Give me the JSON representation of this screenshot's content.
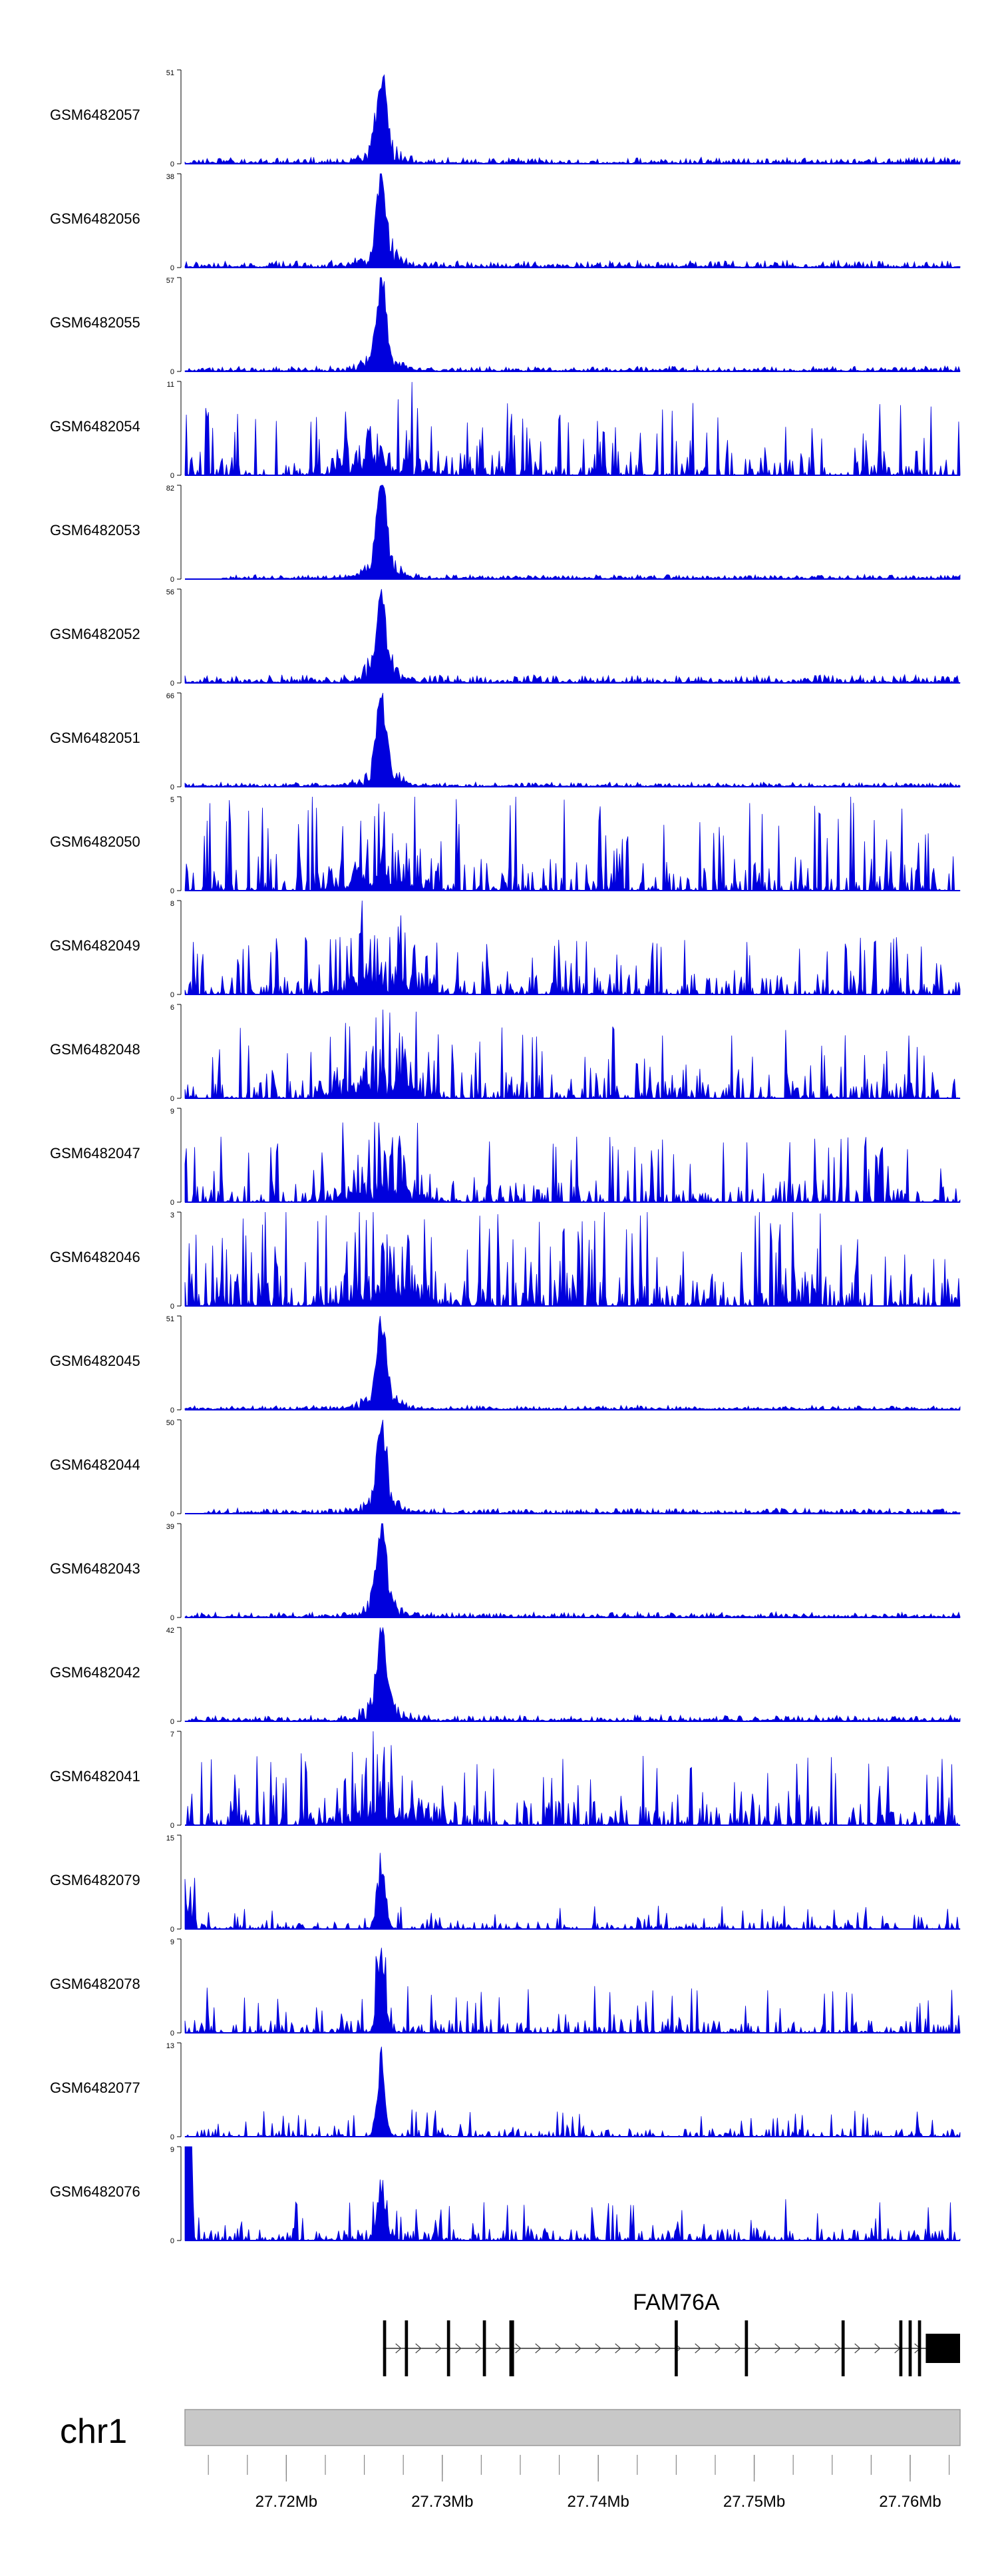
{
  "chart_data": {
    "type": "area",
    "title": "",
    "chromosome": "chr1",
    "x_unit": "Mb",
    "xlim": [
      27.7135,
      27.7632
    ],
    "genome_axis": {
      "major_ticks": [
        27.72,
        27.73,
        27.74,
        27.75,
        27.76
      ],
      "tick_labels": [
        "27.72Mb",
        "27.73Mb",
        "27.74Mb",
        "27.75Mb",
        "27.76Mb"
      ],
      "minor_tick_step": 0.0025
    },
    "peak_center": 27.7261,
    "series": [
      {
        "name": "GSM6482057",
        "ymax": 51,
        "ymin": 0,
        "profile": "peak",
        "peak": 1.0,
        "noise": 0.06
      },
      {
        "name": "GSM6482056",
        "ymax": 38,
        "ymin": 0,
        "profile": "peak",
        "peak": 0.97,
        "noise": 0.07
      },
      {
        "name": "GSM6482055",
        "ymax": 57,
        "ymin": 0,
        "profile": "peak",
        "peak": 0.97,
        "noise": 0.05
      },
      {
        "name": "GSM6482054",
        "ymax": 11,
        "ymin": 0,
        "profile": "noisy",
        "peak": 0.85,
        "noise": 0.55
      },
      {
        "name": "GSM6482053",
        "ymax": 82,
        "ymin": 0,
        "profile": "peak",
        "peak": 1.0,
        "noise": 0.04
      },
      {
        "name": "GSM6482052",
        "ymax": 56,
        "ymin": 0,
        "profile": "peak",
        "peak": 0.97,
        "noise": 0.08
      },
      {
        "name": "GSM6482051",
        "ymax": 66,
        "ymin": 0,
        "profile": "peak",
        "peak": 0.98,
        "noise": 0.04
      },
      {
        "name": "GSM6482050",
        "ymax": 5,
        "ymin": 0,
        "profile": "noisy",
        "peak": 0.5,
        "noise": 0.75
      },
      {
        "name": "GSM6482049",
        "ymax": 8,
        "ymin": 0,
        "profile": "noisy",
        "peak": 0.95,
        "noise": 0.45
      },
      {
        "name": "GSM6482048",
        "ymax": 6,
        "ymin": 0,
        "profile": "noisy",
        "peak": 0.95,
        "noise": 0.55
      },
      {
        "name": "GSM6482047",
        "ymax": 9,
        "ymin": 0,
        "profile": "noisy",
        "peak": 0.9,
        "noise": 0.5
      },
      {
        "name": "GSM6482046",
        "ymax": 3,
        "ymin": 0,
        "profile": "noisy",
        "peak": 0.9,
        "noise": 0.75
      },
      {
        "name": "GSM6482045",
        "ymax": 51,
        "ymin": 0,
        "profile": "peak",
        "peak": 0.97,
        "noise": 0.04
      },
      {
        "name": "GSM6482044",
        "ymax": 50,
        "ymin": 0,
        "profile": "peak",
        "peak": 0.95,
        "noise": 0.05
      },
      {
        "name": "GSM6482043",
        "ymax": 39,
        "ymin": 0,
        "profile": "peak",
        "peak": 0.97,
        "noise": 0.05
      },
      {
        "name": "GSM6482042",
        "ymax": 42,
        "ymin": 0,
        "profile": "peak",
        "peak": 0.97,
        "noise": 0.06
      },
      {
        "name": "GSM6482041",
        "ymax": 7,
        "ymin": 0,
        "profile": "noisy",
        "peak": 0.8,
        "noise": 0.55
      },
      {
        "name": "GSM6482079",
        "ymax": 15,
        "ymin": 0,
        "profile": "mixed",
        "peak": 0.95,
        "noise": 0.25
      },
      {
        "name": "GSM6482078",
        "ymax": 9,
        "ymin": 0,
        "profile": "mixed",
        "peak": 0.95,
        "noise": 0.5
      },
      {
        "name": "GSM6482077",
        "ymax": 13,
        "ymin": 0,
        "profile": "mixed",
        "peak": 0.95,
        "noise": 0.3
      },
      {
        "name": "GSM6482076",
        "ymax": 9,
        "ymin": 0,
        "profile": "mixed",
        "peak": 0.7,
        "noise": 0.45
      }
    ],
    "gene": {
      "name": "FAM76A",
      "strand": "+",
      "start": 27.7262,
      "end": 27.7632,
      "exons": [
        [
          27.7262,
          27.7264
        ],
        [
          27.7276,
          27.7278
        ],
        [
          27.7303,
          27.7305
        ],
        [
          27.7326,
          27.7328
        ],
        [
          27.7343,
          27.7346
        ],
        [
          27.7449,
          27.7451
        ],
        [
          27.7494,
          27.7496
        ],
        [
          27.7556,
          27.7558
        ],
        [
          27.7593,
          27.7595
        ],
        [
          27.7599,
          27.7601
        ],
        [
          27.7605,
          27.7607
        ],
        [
          27.761,
          27.7632
        ]
      ]
    }
  },
  "colors": {
    "signal": "#0000dd",
    "axis": "#000000",
    "ideogram_fill": "#c8c8c8",
    "ideogram_stroke": "#9a9a9a",
    "gene": "#000000"
  }
}
